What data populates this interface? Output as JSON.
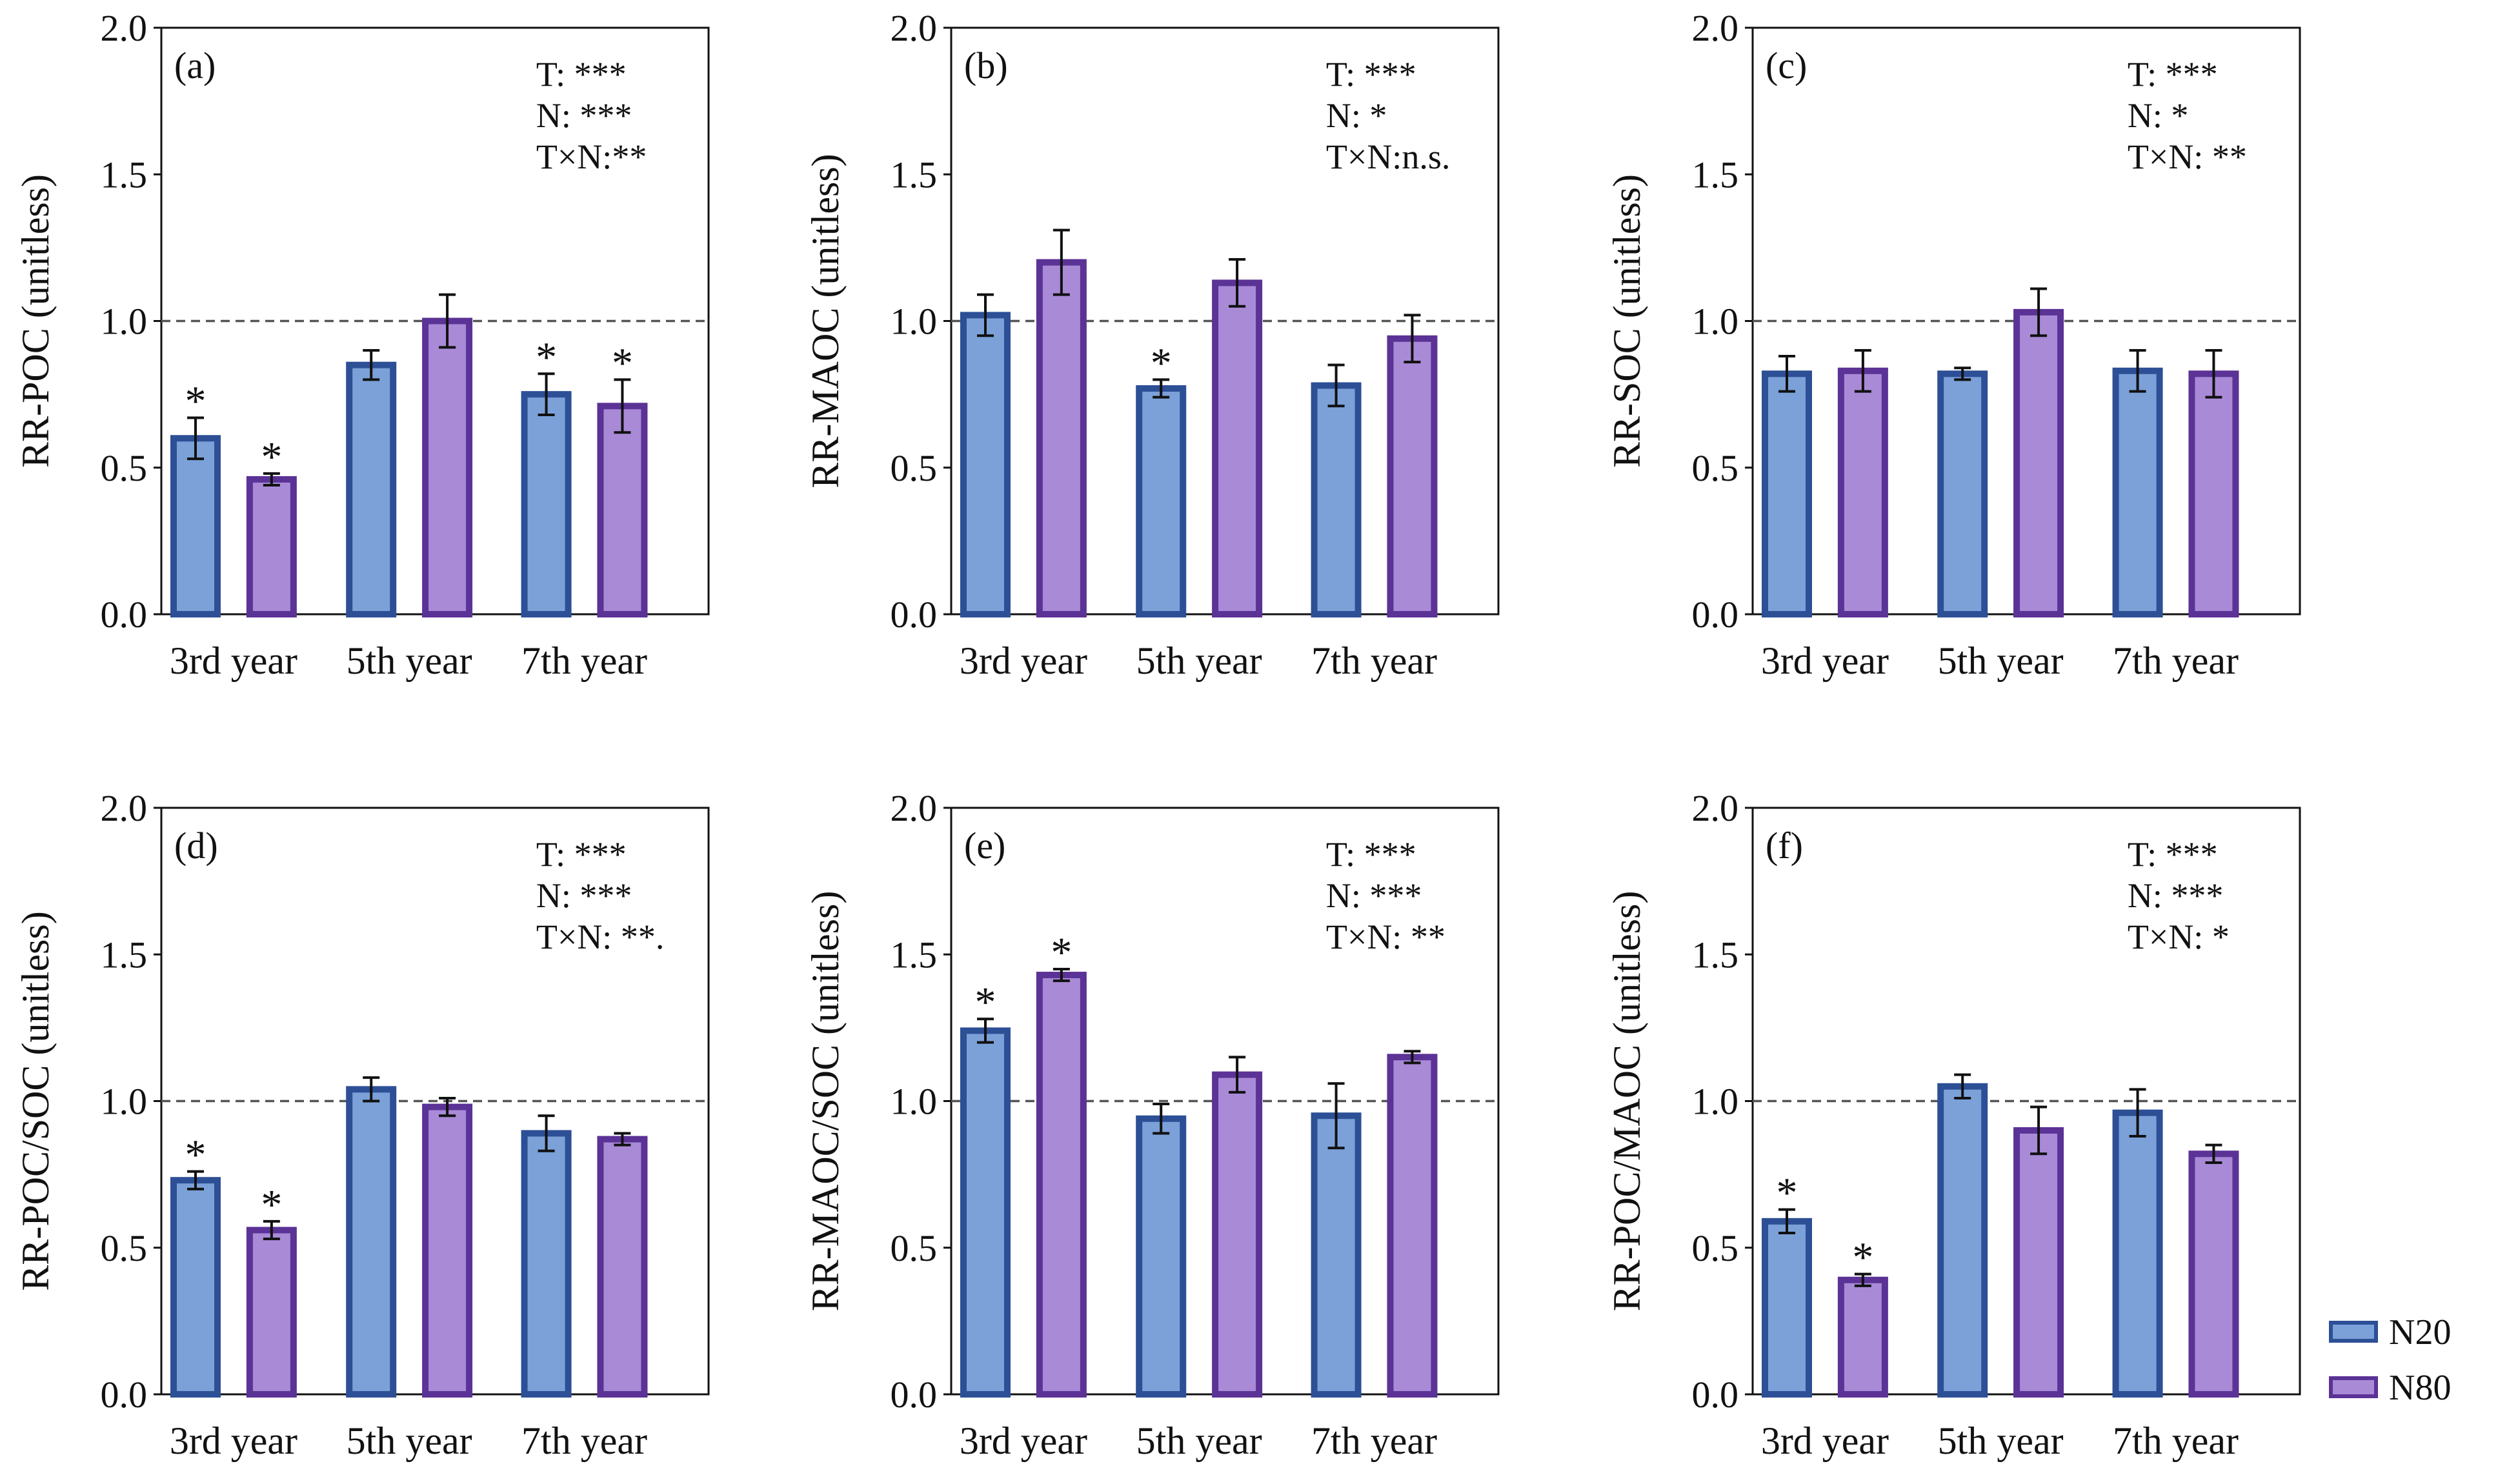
{
  "colors": {
    "n20_fill": "#7ba1d8",
    "n20_stroke": "#2d4f96",
    "n80_fill": "#a98ad7",
    "n80_stroke": "#5b3296",
    "axis": "#111111",
    "reference_line": "#555555"
  },
  "legend": {
    "items": [
      {
        "label": "N20",
        "series": "N20"
      },
      {
        "label": "N80",
        "series": "N80"
      }
    ]
  },
  "chart_data": [
    {
      "type": "bar",
      "panel_label": "(a)",
      "ylabel": "RR-POC  (unitless)",
      "xlabel": "",
      "ylim": [
        0,
        2.0
      ],
      "yticks": [
        "0.0",
        "0.5",
        "1.0",
        "1.5",
        "2.0"
      ],
      "reference_line": 1.0,
      "categories": [
        "3rd year",
        "5th year",
        "7th year"
      ],
      "series": [
        {
          "name": "N20",
          "values": [
            0.6,
            0.85,
            0.75
          ],
          "errors": [
            0.07,
            0.05,
            0.07
          ],
          "significant": [
            true,
            false,
            true
          ]
        },
        {
          "name": "N80",
          "values": [
            0.46,
            1.0,
            0.71
          ],
          "errors": [
            0.02,
            0.09,
            0.09
          ],
          "significant": [
            true,
            false,
            true
          ]
        }
      ],
      "annotations": [
        "T: ***",
        "N: ***",
        "T×N:**"
      ]
    },
    {
      "type": "bar",
      "panel_label": "(b)",
      "ylabel": "RR-MAOC  (unitless)",
      "xlabel": "",
      "ylim": [
        0,
        2.0
      ],
      "yticks": [
        "0.0",
        "0.5",
        "1.0",
        "1.5",
        "2.0"
      ],
      "reference_line": 1.0,
      "categories": [
        "3rd year",
        "5th year",
        "7th year"
      ],
      "series": [
        {
          "name": "N20",
          "values": [
            1.02,
            0.77,
            0.78
          ],
          "errors": [
            0.07,
            0.03,
            0.07
          ],
          "significant": [
            false,
            true,
            false
          ]
        },
        {
          "name": "N80",
          "values": [
            1.2,
            1.13,
            0.94
          ],
          "errors": [
            0.11,
            0.08,
            0.08
          ],
          "significant": [
            false,
            false,
            false
          ]
        }
      ],
      "annotations": [
        "T: ***",
        "N: *",
        "T×N:n.s."
      ]
    },
    {
      "type": "bar",
      "panel_label": "(c)",
      "ylabel": "RR-SOC (unitless)",
      "xlabel": "",
      "ylim": [
        0,
        2.0
      ],
      "yticks": [
        "0.0",
        "0.5",
        "1.0",
        "1.5",
        "2.0"
      ],
      "reference_line": 1.0,
      "categories": [
        "3rd year",
        "5th year",
        "7th year"
      ],
      "series": [
        {
          "name": "N20",
          "values": [
            0.82,
            0.82,
            0.83
          ],
          "errors": [
            0.06,
            0.02,
            0.07
          ],
          "significant": [
            false,
            false,
            false
          ]
        },
        {
          "name": "N80",
          "values": [
            0.83,
            1.03,
            0.82
          ],
          "errors": [
            0.07,
            0.08,
            0.08
          ],
          "significant": [
            false,
            false,
            false
          ]
        }
      ],
      "annotations": [
        "T: ***",
        "N: *",
        "T×N: **"
      ]
    },
    {
      "type": "bar",
      "panel_label": "(d)",
      "ylabel": "RR-POC/SOC (unitless)",
      "xlabel": "",
      "ylim": [
        0,
        2.0
      ],
      "yticks": [
        "0.0",
        "0.5",
        "1.0",
        "1.5",
        "2.0"
      ],
      "reference_line": 1.0,
      "categories": [
        "3rd year",
        "5th year",
        "7th year"
      ],
      "series": [
        {
          "name": "N20",
          "values": [
            0.73,
            1.04,
            0.89
          ],
          "errors": [
            0.03,
            0.04,
            0.06
          ],
          "significant": [
            true,
            false,
            false
          ]
        },
        {
          "name": "N80",
          "values": [
            0.56,
            0.98,
            0.87
          ],
          "errors": [
            0.03,
            0.03,
            0.02
          ],
          "significant": [
            true,
            false,
            false
          ]
        }
      ],
      "annotations": [
        "T: ***",
        "N: ***",
        "T×N: **."
      ]
    },
    {
      "type": "bar",
      "panel_label": "(e)",
      "ylabel": "RR-MAOC/SOC (unitless)",
      "xlabel": "",
      "ylim": [
        0,
        2.0
      ],
      "yticks": [
        "0.0",
        "0.5",
        "1.0",
        "1.5",
        "2.0"
      ],
      "reference_line": 1.0,
      "categories": [
        "3rd year",
        "5th year",
        "7th year"
      ],
      "series": [
        {
          "name": "N20",
          "values": [
            1.24,
            0.94,
            0.95
          ],
          "errors": [
            0.04,
            0.05,
            0.11
          ],
          "significant": [
            true,
            false,
            false
          ]
        },
        {
          "name": "N80",
          "values": [
            1.43,
            1.09,
            1.15
          ],
          "errors": [
            0.02,
            0.06,
            0.02
          ],
          "significant": [
            true,
            false,
            false
          ]
        }
      ],
      "annotations": [
        "T: ***",
        "N: ***",
        "T×N: **"
      ]
    },
    {
      "type": "bar",
      "panel_label": "(f)",
      "ylabel": "RR-POC/MAOC (unitless)",
      "xlabel": "",
      "ylim": [
        0,
        2.0
      ],
      "yticks": [
        "0.0",
        "0.5",
        "1.0",
        "1.5",
        "2.0"
      ],
      "reference_line": 1.0,
      "categories": [
        "3rd year",
        "5th year",
        "7th year"
      ],
      "series": [
        {
          "name": "N20",
          "values": [
            0.59,
            1.05,
            0.96
          ],
          "errors": [
            0.04,
            0.04,
            0.08
          ],
          "significant": [
            true,
            false,
            false
          ]
        },
        {
          "name": "N80",
          "values": [
            0.39,
            0.9,
            0.82
          ],
          "errors": [
            0.02,
            0.08,
            0.03
          ],
          "significant": [
            true,
            false,
            false
          ]
        }
      ],
      "annotations": [
        "T: ***",
        "N: ***",
        "T×N: *"
      ]
    }
  ]
}
